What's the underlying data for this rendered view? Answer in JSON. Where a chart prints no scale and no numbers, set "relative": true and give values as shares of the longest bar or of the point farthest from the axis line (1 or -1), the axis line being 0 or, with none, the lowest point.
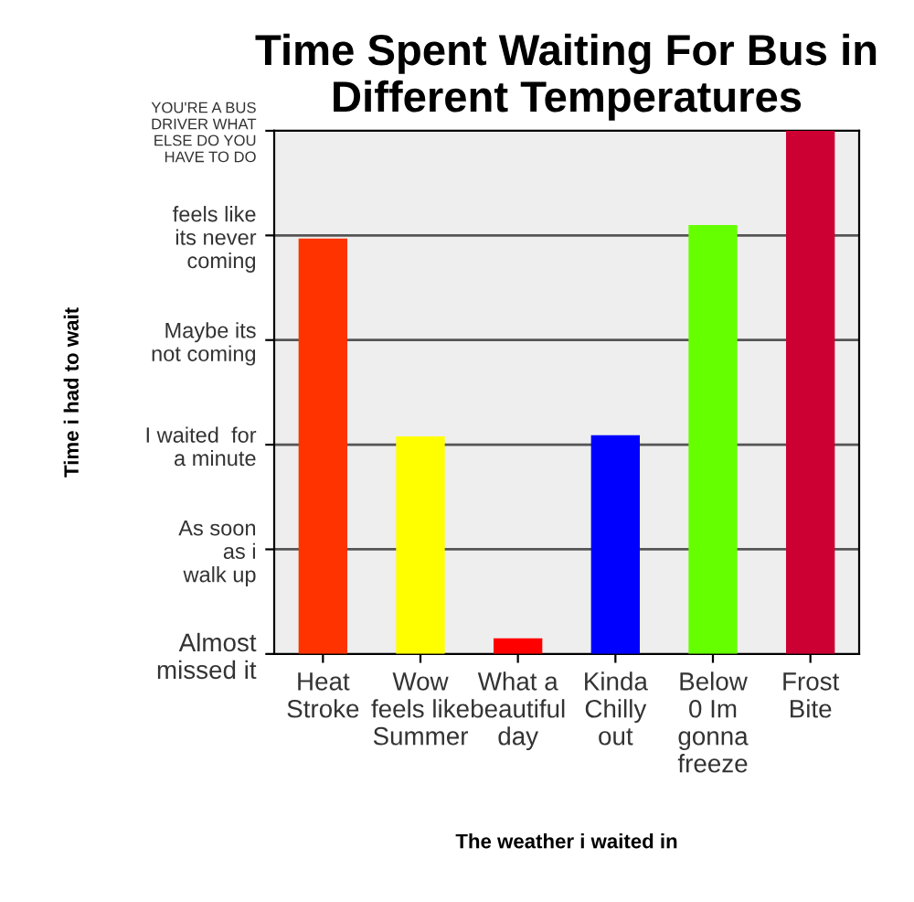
{
  "chart_data": {
    "type": "bar",
    "title": "Time Spent Waiting For Bus in Different Temperatures",
    "xlabel": "The weather i waited in",
    "categories": [
      "Heat\nStroke",
      "Wow\nfeels like\nSummer",
      "What a\nbeautiful\nday",
      "Kinda\nChilly\nout",
      "Below\n0 Im\ngonna\nfreeze",
      "Frost\nBite"
    ],
    "values": [
      0.794,
      0.416,
      0.03,
      0.418,
      0.82,
      1.0
    ],
    "colors": [
      "#ff3300",
      "#ffff00",
      "#ff0000",
      "#0000ff",
      "#66ff00",
      "#cc0033"
    ],
    "relative": true,
    "annotations": [
      "Time i had to wait",
      "Almost\nmissed it",
      "As soon\nas i\nwalk up",
      "I waited  for\na minute",
      "Maybe its\nnot coming",
      "feels like\nits never\ncoming",
      "YOU'RE A BUS\nDRIVER WHAT\nELSE DO YOU\nHAVE TO DO"
    ],
    "grid": "y"
  }
}
